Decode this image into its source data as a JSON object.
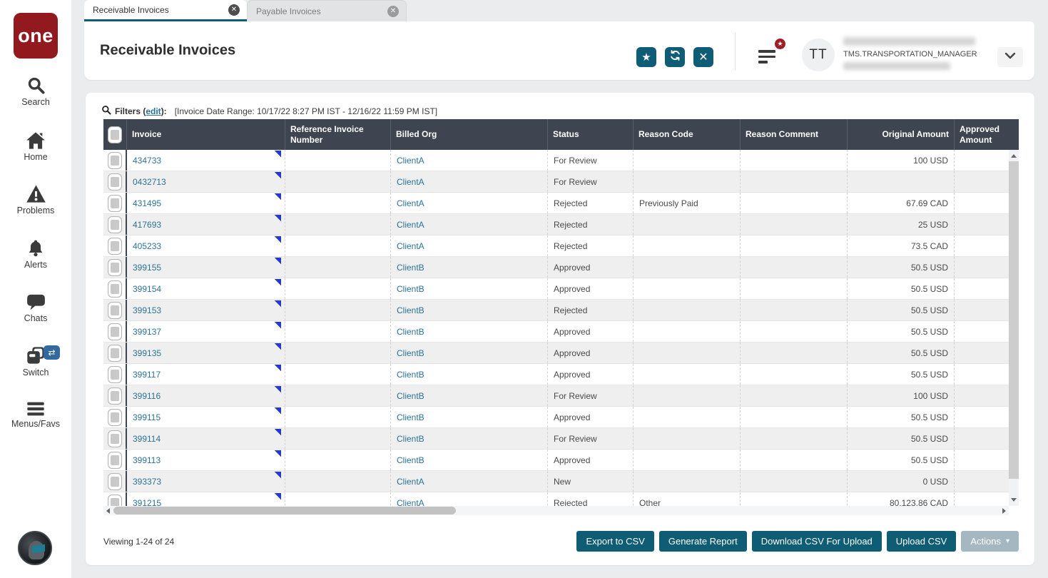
{
  "app": {
    "logo_text": "one"
  },
  "sidebar": {
    "items": [
      {
        "label": "Search"
      },
      {
        "label": "Home"
      },
      {
        "label": "Problems"
      },
      {
        "label": "Alerts"
      },
      {
        "label": "Chats"
      },
      {
        "label": "Switch"
      },
      {
        "label": "Menus/Favs"
      }
    ],
    "switch_badge_glyph": "⇄"
  },
  "tabs": [
    {
      "label": "Receivable Invoices",
      "active": true
    },
    {
      "label": "Payable Invoices",
      "active": false
    }
  ],
  "header": {
    "title": "Receivable Invoices",
    "avatar_initials": "TT",
    "user_role": "TMS.TRANSPORTATION_MANAGER",
    "badge_glyph": "★"
  },
  "filters": {
    "label": "Filters (",
    "edit_link": "edit",
    "label_suffix": "):",
    "range_text": "[Invoice Date Range: 10/17/22 8:27 PM IST - 12/16/22 11:59 PM IST]"
  },
  "table": {
    "columns": [
      "Invoice",
      "Reference Invoice Number",
      "Billed Org",
      "Status",
      "Reason Code",
      "Reason Comment",
      "Original Amount",
      "Approved Amount"
    ],
    "rows": [
      {
        "invoice": "434733",
        "reference": "",
        "billed_org": "ClientA",
        "status": "For Review",
        "reason_code": "",
        "reason_comment": "",
        "original_amount": "100 USD",
        "approved_amount": ""
      },
      {
        "invoice": "0432713",
        "reference": "",
        "billed_org": "ClientA",
        "status": "For Review",
        "reason_code": "",
        "reason_comment": "",
        "original_amount": "",
        "approved_amount": ""
      },
      {
        "invoice": "431495",
        "reference": "",
        "billed_org": "ClientA",
        "status": "Rejected",
        "reason_code": "Previously Paid",
        "reason_comment": "",
        "original_amount": "67.69 CAD",
        "approved_amount": ""
      },
      {
        "invoice": "417693",
        "reference": "",
        "billed_org": "ClientA",
        "status": "Rejected",
        "reason_code": "",
        "reason_comment": "",
        "original_amount": "25 USD",
        "approved_amount": ""
      },
      {
        "invoice": "405233",
        "reference": "",
        "billed_org": "ClientA",
        "status": "Rejected",
        "reason_code": "",
        "reason_comment": "",
        "original_amount": "73.5 CAD",
        "approved_amount": ""
      },
      {
        "invoice": "399155",
        "reference": "",
        "billed_org": "ClientB",
        "status": "Approved",
        "reason_code": "",
        "reason_comment": "",
        "original_amount": "50.5 USD",
        "approved_amount": ""
      },
      {
        "invoice": "399154",
        "reference": "",
        "billed_org": "ClientB",
        "status": "Approved",
        "reason_code": "",
        "reason_comment": "",
        "original_amount": "50.5 USD",
        "approved_amount": ""
      },
      {
        "invoice": "399153",
        "reference": "",
        "billed_org": "ClientB",
        "status": "Rejected",
        "reason_code": "",
        "reason_comment": "",
        "original_amount": "50.5 USD",
        "approved_amount": ""
      },
      {
        "invoice": "399137",
        "reference": "",
        "billed_org": "ClientB",
        "status": "Approved",
        "reason_code": "",
        "reason_comment": "",
        "original_amount": "50.5 USD",
        "approved_amount": ""
      },
      {
        "invoice": "399135",
        "reference": "",
        "billed_org": "ClientB",
        "status": "Approved",
        "reason_code": "",
        "reason_comment": "",
        "original_amount": "50.5 USD",
        "approved_amount": ""
      },
      {
        "invoice": "399117",
        "reference": "",
        "billed_org": "ClientB",
        "status": "Approved",
        "reason_code": "",
        "reason_comment": "",
        "original_amount": "50.5 USD",
        "approved_amount": ""
      },
      {
        "invoice": "399116",
        "reference": "",
        "billed_org": "ClientB",
        "status": "For Review",
        "reason_code": "",
        "reason_comment": "",
        "original_amount": "100 USD",
        "approved_amount": ""
      },
      {
        "invoice": "399115",
        "reference": "",
        "billed_org": "ClientB",
        "status": "Approved",
        "reason_code": "",
        "reason_comment": "",
        "original_amount": "50.5 USD",
        "approved_amount": ""
      },
      {
        "invoice": "399114",
        "reference": "",
        "billed_org": "ClientB",
        "status": "For Review",
        "reason_code": "",
        "reason_comment": "",
        "original_amount": "50.5 USD",
        "approved_amount": ""
      },
      {
        "invoice": "399113",
        "reference": "",
        "billed_org": "ClientB",
        "status": "Approved",
        "reason_code": "",
        "reason_comment": "",
        "original_amount": "50.5 USD",
        "approved_amount": ""
      },
      {
        "invoice": "393373",
        "reference": "",
        "billed_org": "ClientA",
        "status": "New",
        "reason_code": "",
        "reason_comment": "",
        "original_amount": "0 USD",
        "approved_amount": ""
      },
      {
        "invoice": "391215",
        "reference": "",
        "billed_org": "ClientA",
        "status": "Rejected",
        "reason_code": "Other",
        "reason_comment": "",
        "original_amount": "80,123.86 CAD",
        "approved_amount": ""
      }
    ]
  },
  "footer": {
    "viewing": "Viewing 1-24 of 24",
    "buttons": [
      {
        "label": "Export to CSV"
      },
      {
        "label": "Generate Report"
      },
      {
        "label": "Download CSV For Upload"
      },
      {
        "label": "Upload CSV"
      }
    ],
    "actions": {
      "label": "Actions",
      "enabled": false
    }
  },
  "colors": {
    "teal": "#0f5d75",
    "logo_red": "#92191d",
    "badge_red": "#a01d24",
    "table_header_bg": "#3e4450",
    "link": "#2c7397",
    "switch_badge_blue": "#33699e"
  }
}
